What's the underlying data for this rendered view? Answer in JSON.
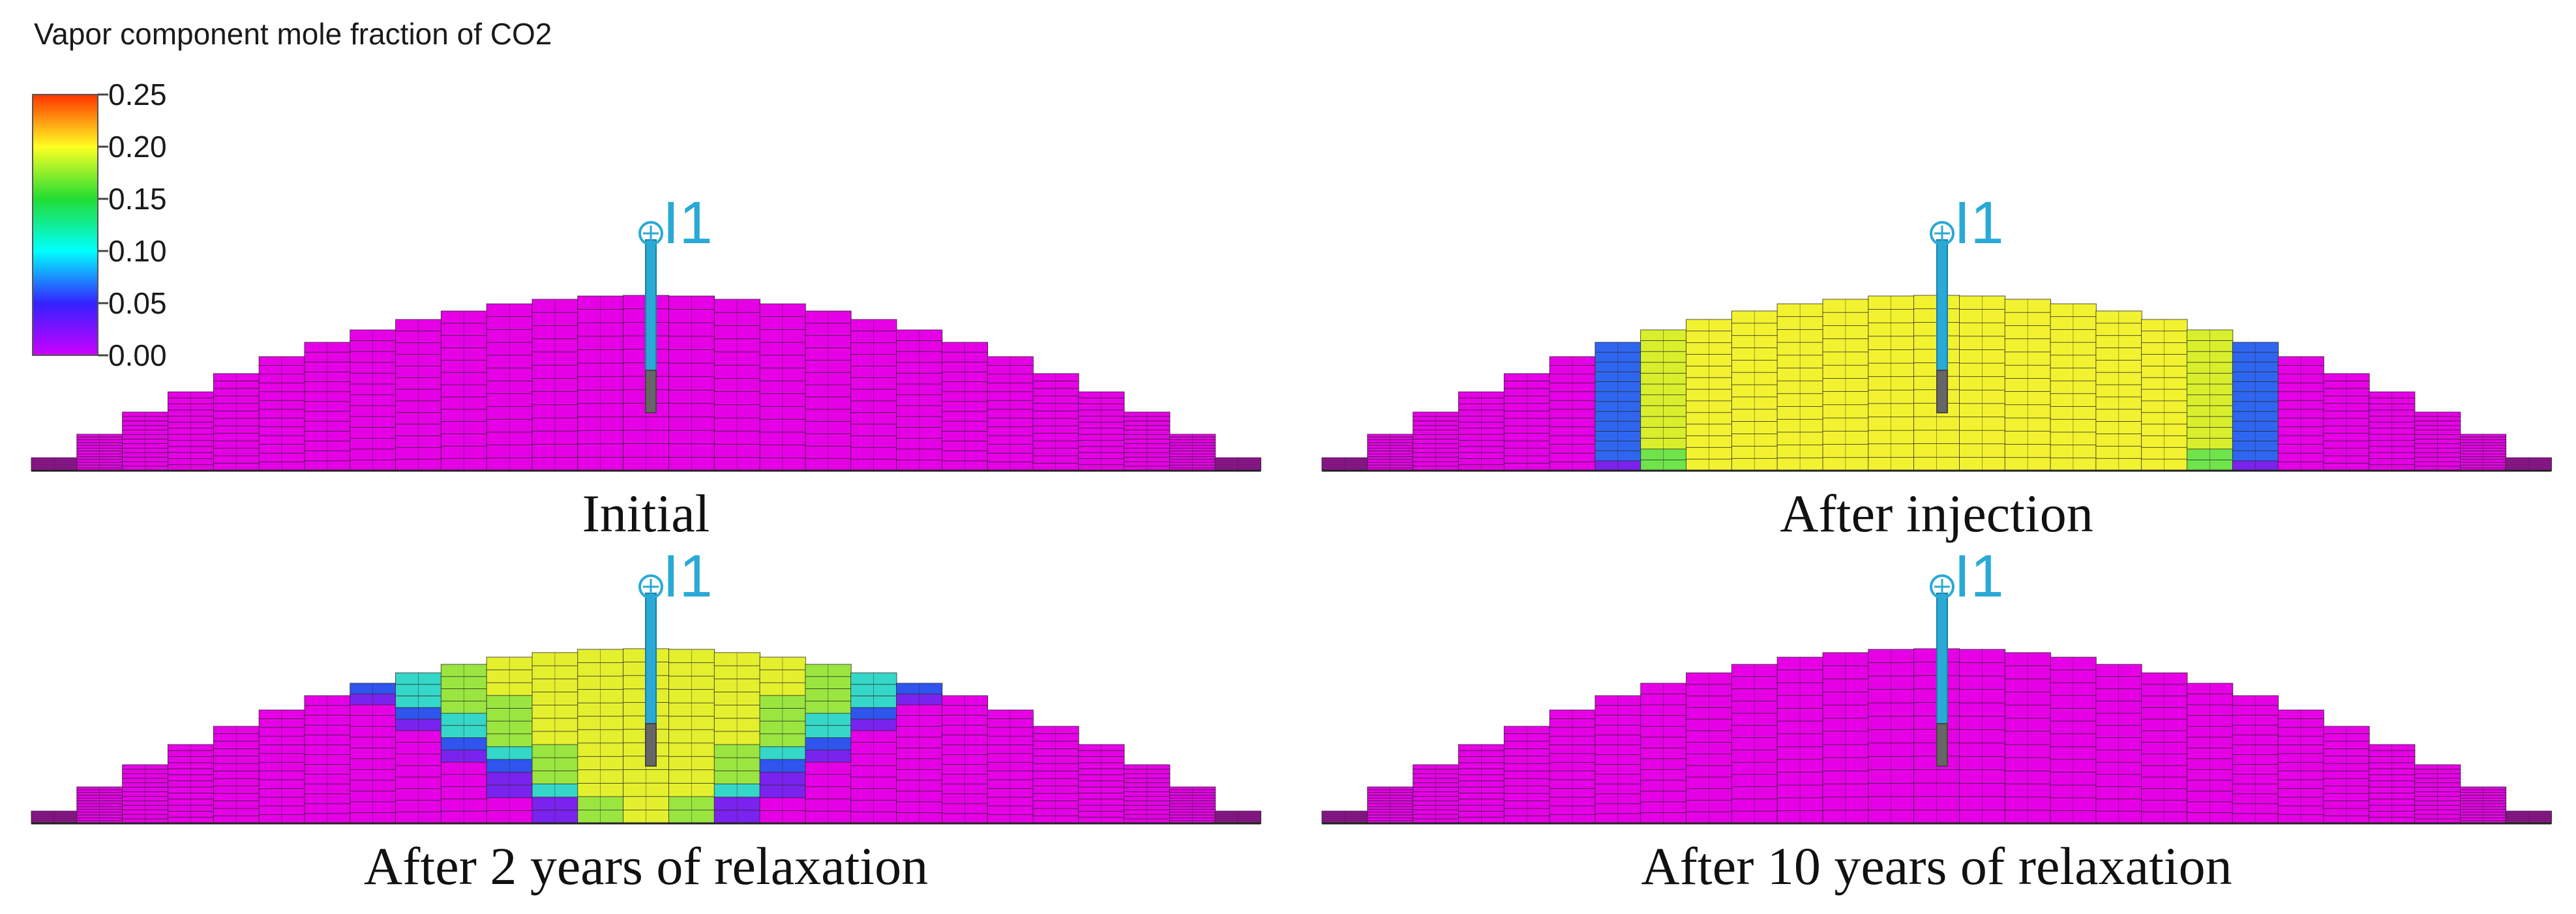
{
  "legend": {
    "title": "Vapor component mole fraction of CO2",
    "ticks": [
      "0.25",
      "0.20",
      "0.15",
      "0.10",
      "0.05",
      "0.00"
    ],
    "range": [
      0.0,
      0.25
    ],
    "colormap": [
      "#cc00ff",
      "#3322ff",
      "#00ffff",
      "#22dd33",
      "#ffff22",
      "#ff3300"
    ]
  },
  "panels": [
    {
      "caption": "Initial",
      "well": "I1",
      "plume": "none"
    },
    {
      "caption": "After injection",
      "well": "I1",
      "plume": "large"
    },
    {
      "caption": "After 2 years of relaxation",
      "well": "I1",
      "plume": "medium"
    },
    {
      "caption": "After 10 years of relaxation",
      "well": "I1",
      "plume": "none"
    }
  ],
  "colors": {
    "background_fraction": "#e600e6",
    "grid_line": "#2a2a2a",
    "well_tube": "#29a9d6",
    "well_perforation": "#666666"
  }
}
